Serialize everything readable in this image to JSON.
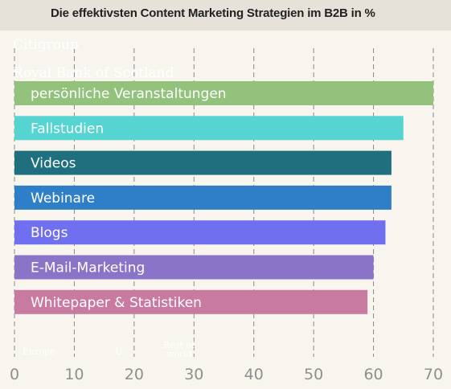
{
  "chart_data": {
    "type": "bar",
    "orientation": "horizontal",
    "title": "Die effektivsten Content Marketing Strategien im B2B in %",
    "categories": [
      "persönliche Veranstaltungen",
      "Fallstudien",
      "Videos",
      "Webinare",
      "Blogs",
      "E-Mail-Marketing",
      "Whitepaper & Statistiken"
    ],
    "values": [
      70,
      65,
      63,
      63,
      62,
      60,
      59
    ],
    "colors": [
      "#92c27c",
      "#56d4d2",
      "#1f6f7e",
      "#2f7fc8",
      "#6f6ff0",
      "#8a74c8",
      "#c87aa0"
    ],
    "xlim": [
      0,
      70
    ],
    "xticks": [
      "0",
      "10",
      "20",
      "30",
      "40",
      "50",
      "60",
      "70"
    ],
    "grid": "vertical-dashed",
    "legend": "none"
  },
  "ghost_labels": {
    "top": [
      "Citigroup",
      "Royal Bank of Scotland"
    ],
    "bottom": [
      "Europe",
      "U.",
      "Rest of world"
    ]
  }
}
